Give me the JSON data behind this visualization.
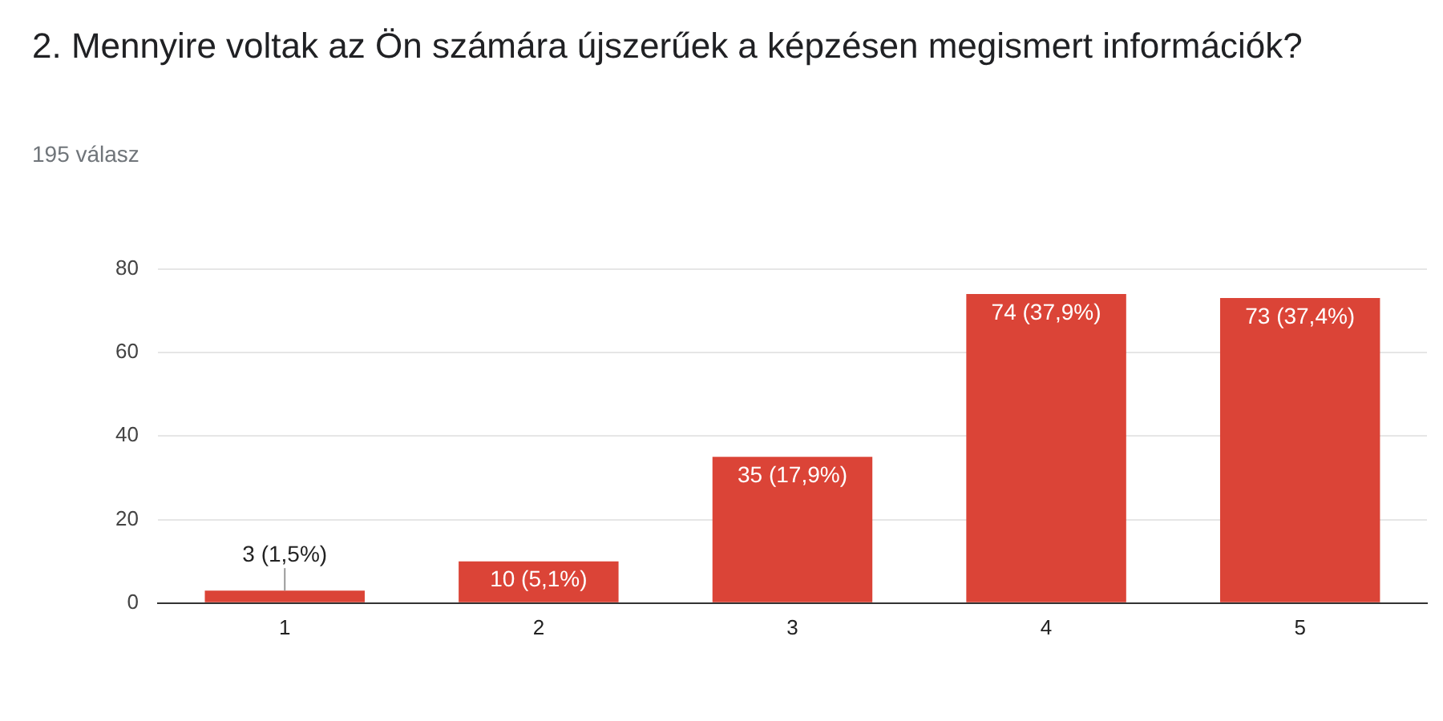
{
  "chart_data": {
    "type": "bar",
    "title": "2. Mennyire voltak az Ön számára újszerűek a képzésen megismert információk?",
    "subtitle": "195 válasz",
    "categories": [
      "1",
      "2",
      "3",
      "4",
      "5"
    ],
    "values": [
      3,
      10,
      35,
      74,
      73
    ],
    "value_labels": [
      "3 (1,5%)",
      "10 (5,1%)",
      "35 (17,9%)",
      "74 (37,9%)",
      "73 (37,4%)"
    ],
    "color": "#db4437",
    "ylim": [
      0,
      80
    ],
    "yticks": [
      0,
      20,
      40,
      60,
      80
    ],
    "grid": "y"
  }
}
